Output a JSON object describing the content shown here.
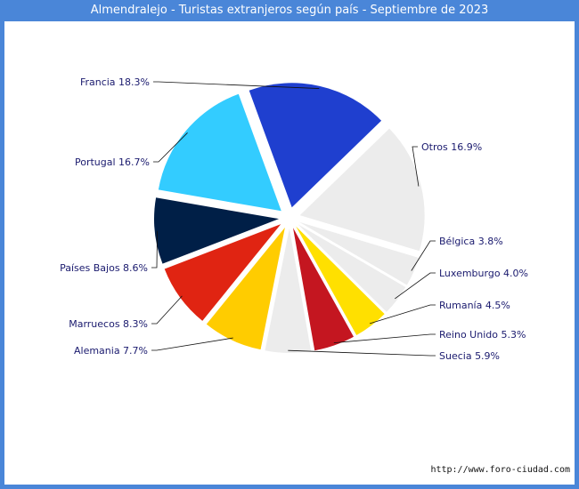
{
  "chart_data": {
    "type": "pie",
    "title": "Almendralejo - Turistas extranjeros según país - Septiembre de 2023",
    "slices": [
      {
        "name": "Francia",
        "value": 18.3,
        "label": "Francia 18.3%",
        "color": "#1f3fcf",
        "explode": true
      },
      {
        "name": "Otros",
        "value": 16.9,
        "label": "Otros 16.9%",
        "color": "#ececec",
        "explode": true
      },
      {
        "name": "Bélgica",
        "value": 3.8,
        "label": "Bélgica 3.8%",
        "color": "#ececec",
        "explode": true
      },
      {
        "name": "Luxemburgo",
        "value": 4.0,
        "label": "Luxemburgo 4.0%",
        "color": "#ececec",
        "explode": true
      },
      {
        "name": "Rumanía",
        "value": 4.5,
        "label": "Rumanía 4.5%",
        "color": "#ffe000",
        "explode": true
      },
      {
        "name": "Reino Unido",
        "value": 5.3,
        "label": "Reino Unido 5.3%",
        "color": "#c41620",
        "explode": true
      },
      {
        "name": "Suecia",
        "value": 5.9,
        "label": "Suecia 5.9%",
        "color": "#ececec",
        "explode": true
      },
      {
        "name": "Alemania",
        "value": 7.7,
        "label": "Alemania 7.7%",
        "color": "#ffcc00",
        "explode": true
      },
      {
        "name": "Marruecos",
        "value": 8.3,
        "label": "Marruecos 8.3%",
        "color": "#e02412",
        "explode": true
      },
      {
        "name": "Países Bajos",
        "value": 8.6,
        "label": "Países Bajos 8.6%",
        "color": "#001f47",
        "explode": true
      },
      {
        "name": "Portugal",
        "value": 16.7,
        "label": "Portugal 16.7%",
        "color": "#33ccff",
        "explode": true
      }
    ]
  },
  "source": "http://www.foro-ciudad.com"
}
